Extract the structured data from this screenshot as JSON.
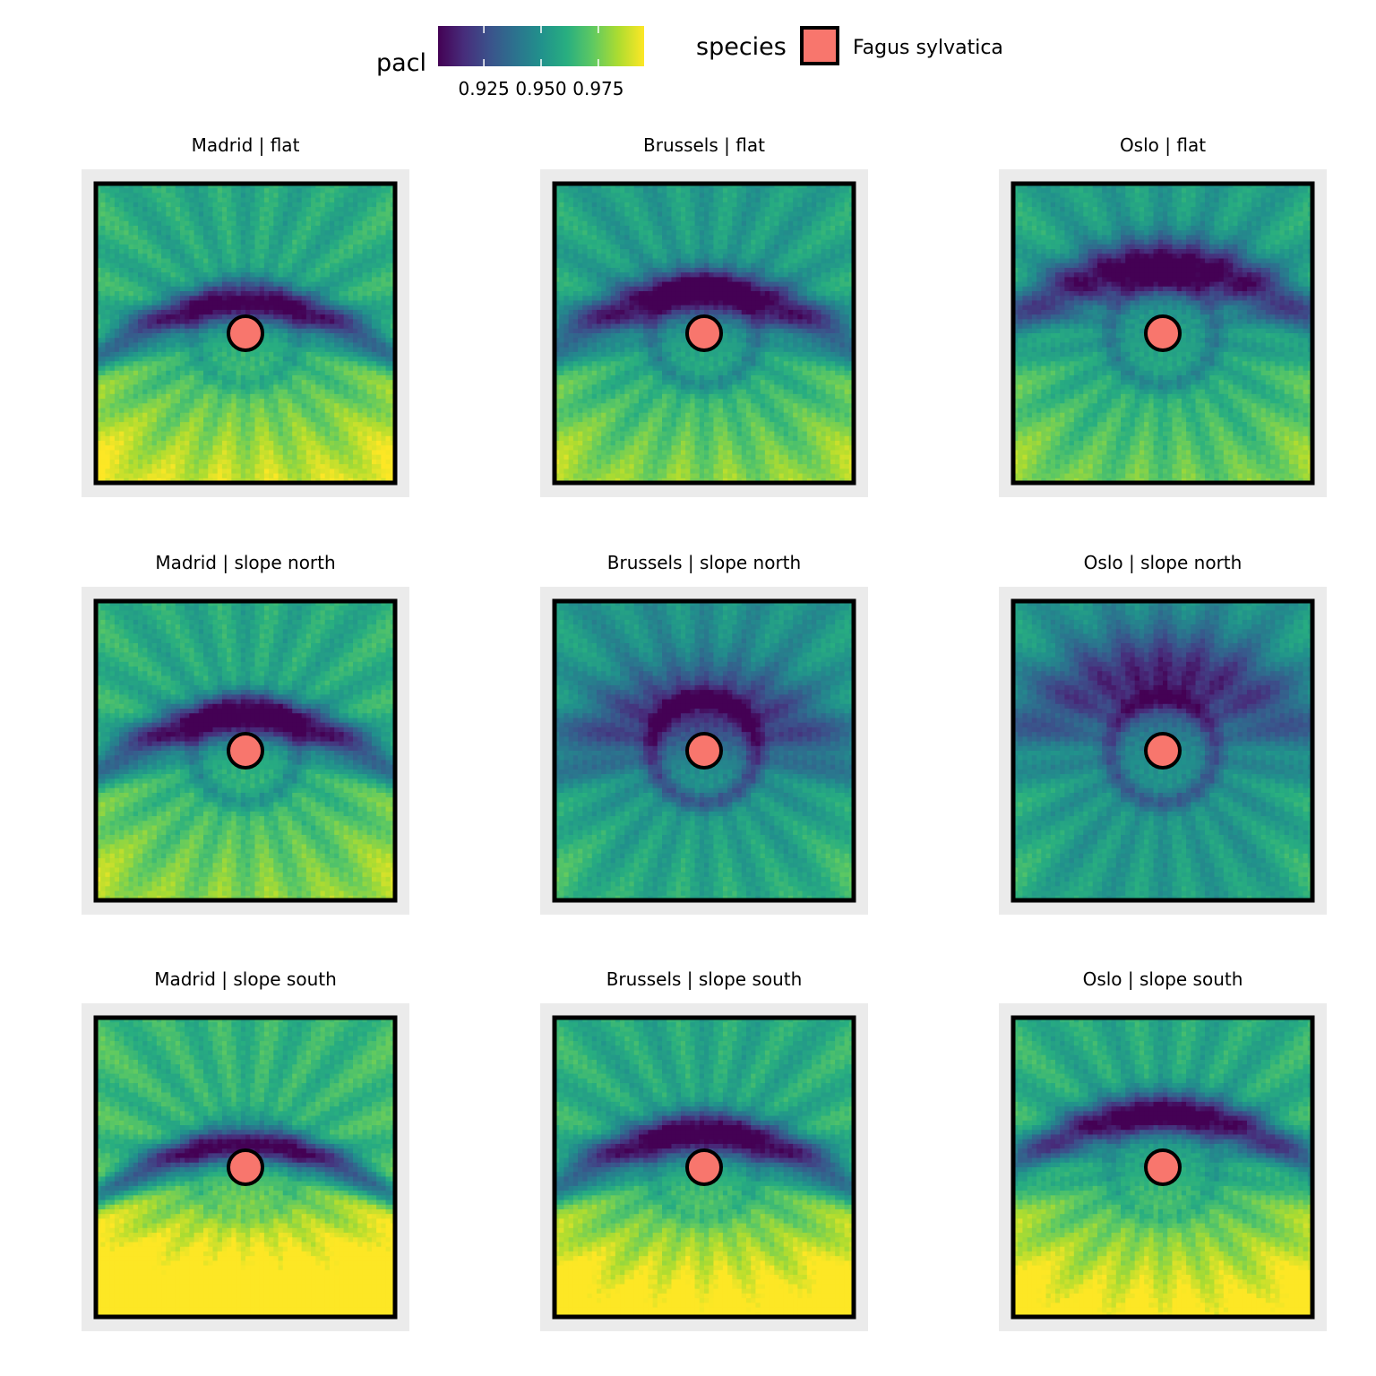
{
  "chart_data": {
    "type": "heatmap",
    "facet_rows": [
      "flat",
      "slope north",
      "slope south"
    ],
    "facet_cols": [
      "Madrid",
      "Brussels",
      "Oslo"
    ],
    "panels": [
      {
        "title": "Madrid | flat",
        "site": "Madrid",
        "terrain": "flat",
        "band_y": -0.2,
        "band_w": 0.09,
        "band_depth": 0.85,
        "ring_depth": 0.3,
        "south_bias": 0.3,
        "mid_level": 0.4
      },
      {
        "title": "Brussels | flat",
        "site": "Brussels",
        "terrain": "flat",
        "band_y": -0.27,
        "band_w": 0.11,
        "band_depth": 0.85,
        "ring_depth": 0.45,
        "south_bias": 0.25,
        "mid_level": 0.45
      },
      {
        "title": "Oslo | flat",
        "site": "Oslo",
        "terrain": "flat",
        "band_y": -0.45,
        "band_w": 0.13,
        "band_depth": 0.85,
        "ring_depth": 0.45,
        "south_bias": 0.2,
        "mid_level": 0.45
      },
      {
        "title": "Madrid | slope north",
        "site": "Madrid",
        "terrain": "slope north",
        "band_y": -0.22,
        "band_w": 0.1,
        "band_depth": 0.9,
        "ring_depth": 0.45,
        "south_bias": 0.2,
        "mid_level": 0.4
      },
      {
        "title": "Brussels | slope north",
        "site": "Brussels",
        "terrain": "slope north",
        "band_y": -0.3,
        "band_w": 0.2,
        "band_depth": 0.5,
        "ring_depth": 0.75,
        "south_bias": 0.1,
        "mid_level": 0.5
      },
      {
        "title": "Oslo | slope north",
        "site": "Oslo",
        "terrain": "slope north",
        "band_y": -0.5,
        "band_w": 0.22,
        "band_depth": 0.55,
        "ring_depth": 0.65,
        "south_bias": 0.05,
        "mid_level": 0.5
      },
      {
        "title": "Madrid | slope south",
        "site": "Madrid",
        "terrain": "slope south",
        "band_y": -0.15,
        "band_w": 0.08,
        "band_depth": 0.9,
        "ring_depth": 0.2,
        "south_bias": 0.55,
        "mid_level": 0.35
      },
      {
        "title": "Brussels | slope south",
        "site": "Brussels",
        "terrain": "slope south",
        "band_y": -0.22,
        "band_w": 0.1,
        "band_depth": 0.9,
        "ring_depth": 0.25,
        "south_bias": 0.45,
        "mid_level": 0.4
      },
      {
        "title": "Oslo | slope south",
        "site": "Oslo",
        "terrain": "slope south",
        "band_y": -0.36,
        "band_w": 0.1,
        "band_depth": 0.9,
        "ring_depth": 0.25,
        "south_bias": 0.4,
        "mid_level": 0.4
      }
    ],
    "color_legend": {
      "title": "pacl",
      "palette": "viridis",
      "range": [
        0.905,
        0.995
      ],
      "ticks": [
        0.925,
        0.95,
        0.975
      ],
      "tick_labels": [
        "0.925",
        "0.950",
        "0.975"
      ]
    },
    "fill_legend": {
      "title": "species",
      "entries": [
        {
          "label": "Fagus sylvatica",
          "color": "#F8766D"
        }
      ]
    },
    "point": {
      "species": "Fagus sylvatica",
      "color": "#F8766D"
    },
    "legend_position": "top",
    "grid": true,
    "viridis_stops": [
      "#440154",
      "#472d7b",
      "#3b528b",
      "#2c728e",
      "#21918c",
      "#28ae80",
      "#5ec962",
      "#addc30",
      "#fde725"
    ]
  }
}
